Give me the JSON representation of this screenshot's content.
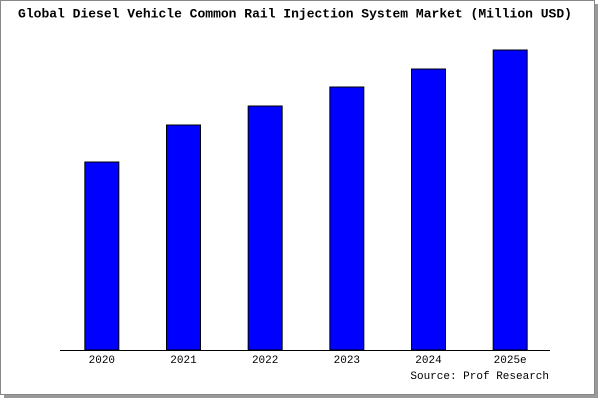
{
  "chart_data": {
    "type": "bar",
    "title": "Global Diesel Vehicle Common Rail Injection System Market (Million USD)",
    "categories": [
      "2020",
      "2021",
      "2022",
      "2023",
      "2024",
      "2025e"
    ],
    "values": [
      188,
      225,
      244,
      263,
      281,
      300
    ],
    "color": "#0000ff",
    "source": "Source: Prof Research"
  }
}
